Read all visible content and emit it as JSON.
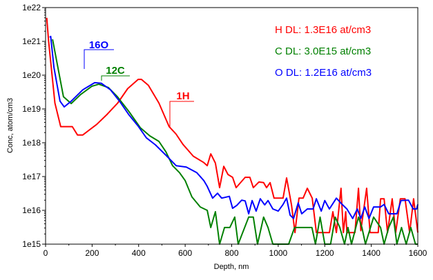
{
  "chart_data": {
    "type": "line",
    "xlabel": "Depth, nm",
    "ylabel": "Conc, atom/cm3",
    "xlim": [
      0,
      1600
    ],
    "ylim": [
      1000000000000000.0,
      1e+22
    ],
    "yscale": "log",
    "xticks": [
      "0",
      "200",
      "400",
      "600",
      "800",
      "1000",
      "1200",
      "1400",
      "1600"
    ],
    "yticks": [
      "1e15",
      "1e16",
      "1e17",
      "1e18",
      "1e19",
      "1e20",
      "1e21",
      "1e22"
    ],
    "grid": false,
    "legend_placement": "top-right",
    "legend": [
      {
        "text": "H DL: 1.3E16 at/cm3",
        "color": "#ff0000"
      },
      {
        "text": "C DL: 3.0E15 at/cm3",
        "color": "#008000"
      },
      {
        "text": "O DL: 1.2E16 at/cm3",
        "color": "#0000ff"
      }
    ],
    "series": [
      {
        "name": "1H",
        "color": "#ff0000",
        "points": [
          [
            5,
            5e+21
          ],
          [
            13,
            1e+21
          ],
          [
            40,
            1.5e+19
          ],
          [
            65,
            3e+18
          ],
          [
            115,
            3e+18
          ],
          [
            137,
            1.7e+18
          ],
          [
            160,
            1.7e+18
          ],
          [
            220,
            3.5e+18
          ],
          [
            265,
            7e+18
          ],
          [
            310,
            1.5e+19
          ],
          [
            353,
            4e+19
          ],
          [
            398,
            7.5e+19
          ],
          [
            412,
            7.5e+19
          ],
          [
            442,
            5e+19
          ],
          [
            487,
            1.5e+19
          ],
          [
            531,
            3e+18
          ],
          [
            561,
            1.8e+18
          ],
          [
            590,
            9e+17
          ],
          [
            635,
            4e+17
          ],
          [
            680,
            2.6e+17
          ],
          [
            695,
            2.1e+17
          ],
          [
            710,
            4.7e+17
          ],
          [
            730,
            2.5e+17
          ],
          [
            748,
            4.7e+16
          ],
          [
            766,
            2e+17
          ],
          [
            784,
            1.15e+17
          ],
          [
            804,
            9.5e+16
          ],
          [
            819,
            4.7e+16
          ],
          [
            858,
            9.5e+16
          ],
          [
            878,
            9.5e+16
          ],
          [
            893,
            4.7e+16
          ],
          [
            917,
            6.9e+16
          ],
          [
            937,
            6.6e+16
          ],
          [
            950,
            4.7e+16
          ],
          [
            965,
            6.6e+16
          ],
          [
            982,
            2.3e+16
          ],
          [
            1021,
            2.3e+16
          ],
          [
            1036,
            9.1e+16
          ],
          [
            1057,
            1.45e+16
          ],
          [
            1072,
            2200000000000000.0
          ],
          [
            1089,
            2.3e+16
          ],
          [
            1107,
            2.3e+16
          ],
          [
            1125,
            4.5e+16
          ],
          [
            1146,
            2.3e+16
          ],
          [
            1164,
            2200000000000000.0
          ],
          [
            1220,
            2200000000000000.0
          ],
          [
            1235,
            9100000000000000.0
          ],
          [
            1250,
            2200000000000000.0
          ],
          [
            1270,
            4.5e+16
          ],
          [
            1280,
            2200000000000000.0
          ],
          [
            1290,
            9100000000000000.0
          ],
          [
            1295,
            2200000000000000.0
          ],
          [
            1330,
            2200000000000000.0
          ],
          [
            1345,
            4.5e+16
          ],
          [
            1355,
            2500000000000000.0
          ],
          [
            1380,
            4.5e+16
          ],
          [
            1395,
            2200000000000000.0
          ],
          [
            1430,
            2200000000000000.0
          ],
          [
            1440,
            2.2e+16
          ],
          [
            1455,
            2.2e+16
          ],
          [
            1470,
            2200000000000000.0
          ],
          [
            1490,
            2.2e+16
          ],
          [
            1505,
            2200000000000000.0
          ],
          [
            1525,
            2.2e+16
          ],
          [
            1545,
            2.2e+16
          ],
          [
            1565,
            2200000000000000.0
          ],
          [
            1582,
            2.2e+16
          ],
          [
            1600,
            2200000000000000.0
          ]
        ]
      },
      {
        "name": "12C",
        "color": "#008000",
        "points": [
          [
            30,
            1.15e+21
          ],
          [
            47,
            2.8e+20
          ],
          [
            77,
            2.3e+19
          ],
          [
            110,
            1.45e+19
          ],
          [
            151,
            2.7e+19
          ],
          [
            199,
            4.7e+19
          ],
          [
            229,
            5.4e+19
          ],
          [
            270,
            4.3e+19
          ],
          [
            309,
            2.3e+19
          ],
          [
            359,
            8.3e+18
          ],
          [
            407,
            2.8e+18
          ],
          [
            448,
            1.6e+18
          ],
          [
            487,
            1.1e+18
          ],
          [
            517,
            5.4e+17
          ],
          [
            546,
            2.1e+17
          ],
          [
            576,
            1.3e+17
          ],
          [
            600,
            7.6e+16
          ],
          [
            629,
            2.5e+16
          ],
          [
            665,
            1.26e+16
          ],
          [
            695,
            1e+16
          ],
          [
            710,
            3100000000000000.0
          ],
          [
            730,
            9100000000000000.0
          ],
          [
            748,
            1000000000000000.0
          ],
          [
            769,
            3100000000000000.0
          ],
          [
            792,
            3100000000000000.0
          ],
          [
            813,
            6300000000000000.0
          ],
          [
            828,
            1000000000000000.0
          ],
          [
            873,
            6300000000000000.0
          ],
          [
            893,
            6300000000000000.0
          ],
          [
            911,
            1000000000000000.0
          ],
          [
            937,
            6300000000000000.0
          ],
          [
            956,
            3100000000000000.0
          ],
          [
            977,
            1000000000000000.0
          ],
          [
            1045,
            1000000000000000.0
          ],
          [
            1070,
            3100000000000000.0
          ],
          [
            1145,
            3100000000000000.0
          ],
          [
            1160,
            1000000000000000.0
          ],
          [
            1180,
            6300000000000000.0
          ],
          [
            1200,
            1000000000000000.0
          ],
          [
            1225,
            1000000000000000.0
          ],
          [
            1245,
            6300000000000000.0
          ],
          [
            1265,
            3100000000000000.0
          ],
          [
            1285,
            1000000000000000.0
          ],
          [
            1300,
            3100000000000000.0
          ],
          [
            1315,
            1000000000000000.0
          ],
          [
            1345,
            6300000000000000.0
          ],
          [
            1360,
            3100000000000000.0
          ],
          [
            1375,
            1000000000000000.0
          ],
          [
            1410,
            6300000000000000.0
          ],
          [
            1440,
            3100000000000000.0
          ],
          [
            1455,
            1000000000000000.0
          ],
          [
            1475,
            3100000000000000.0
          ],
          [
            1495,
            6300000000000000.0
          ],
          [
            1510,
            1000000000000000.0
          ],
          [
            1530,
            3100000000000000.0
          ],
          [
            1550,
            1000000000000000.0
          ],
          [
            1570,
            3100000000000000.0
          ],
          [
            1590,
            1000000000000000.0
          ],
          [
            1600,
            1000000000000000.0
          ]
        ]
      },
      {
        "name": "16O",
        "color": "#0000ff",
        "points": [
          [
            18,
            1.3e+21
          ],
          [
            22,
            1.4e+21
          ],
          [
            36,
            1.7e+20
          ],
          [
            62,
            1.7e+19
          ],
          [
            80,
            1.15e+19
          ],
          [
            110,
            1.7e+19
          ],
          [
            160,
            3.7e+19
          ],
          [
            211,
            6e+19
          ],
          [
            240,
            5.75e+19
          ],
          [
            279,
            3.7e+19
          ],
          [
            318,
            1.7e+19
          ],
          [
            359,
            6.6e+18
          ],
          [
            398,
            3.1e+18
          ],
          [
            433,
            1.4e+18
          ],
          [
            472,
            8.7e+17
          ],
          [
            517,
            4.3e+17
          ],
          [
            561,
            2.1e+17
          ],
          [
            605,
            1.9e+17
          ],
          [
            650,
            1.3e+17
          ],
          [
            680,
            7.6e+16
          ],
          [
            695,
            5.1e+16
          ],
          [
            718,
            2.3e+16
          ],
          [
            739,
            3.2e+16
          ],
          [
            757,
            2.3e+16
          ],
          [
            790,
            2.6e+16
          ],
          [
            804,
            1.15e+16
          ],
          [
            822,
            1.4e+16
          ],
          [
            843,
            2e+16
          ],
          [
            858,
            1.9e+16
          ],
          [
            873,
            7900000000000000.0
          ],
          [
            888,
            1.95e+16
          ],
          [
            905,
            9500000000000000.0
          ],
          [
            923,
            2.2e+16
          ],
          [
            942,
            1.45e+16
          ],
          [
            956,
            1.95e+16
          ],
          [
            977,
            1.1e+16
          ],
          [
            1000,
            9500000000000000.0
          ],
          [
            1021,
            1.5e+16
          ],
          [
            1036,
            2.3e+16
          ],
          [
            1051,
            7200000000000000.0
          ],
          [
            1066,
            5750000000000000.0
          ],
          [
            1086,
            1.66e+16
          ],
          [
            1101,
            7900000000000000.0
          ],
          [
            1125,
            1.1e+16
          ],
          [
            1150,
            1.1e+16
          ],
          [
            1164,
            2.2e+16
          ],
          [
            1185,
            9500000000000000.0
          ],
          [
            1200,
            1.95e+16
          ],
          [
            1220,
            1.1e+16
          ],
          [
            1250,
            2.3e+16
          ],
          [
            1275,
            1.5e+16
          ],
          [
            1295,
            1.1e+16
          ],
          [
            1320,
            5750000000000000.0
          ],
          [
            1340,
            1.1e+16
          ],
          [
            1355,
            5750000000000000.0
          ],
          [
            1372,
            1.26e+16
          ],
          [
            1390,
            5750000000000000.0
          ],
          [
            1410,
            1.26e+16
          ],
          [
            1440,
            1.26e+16
          ],
          [
            1455,
            1.5e+16
          ],
          [
            1475,
            7900000000000000.0
          ],
          [
            1510,
            7900000000000000.0
          ],
          [
            1528,
            1.95e+16
          ],
          [
            1560,
            2e+16
          ],
          [
            1580,
            1.1e+16
          ],
          [
            1595,
            1.1e+16
          ],
          [
            1600,
            1.5e+16
          ]
        ]
      }
    ]
  }
}
